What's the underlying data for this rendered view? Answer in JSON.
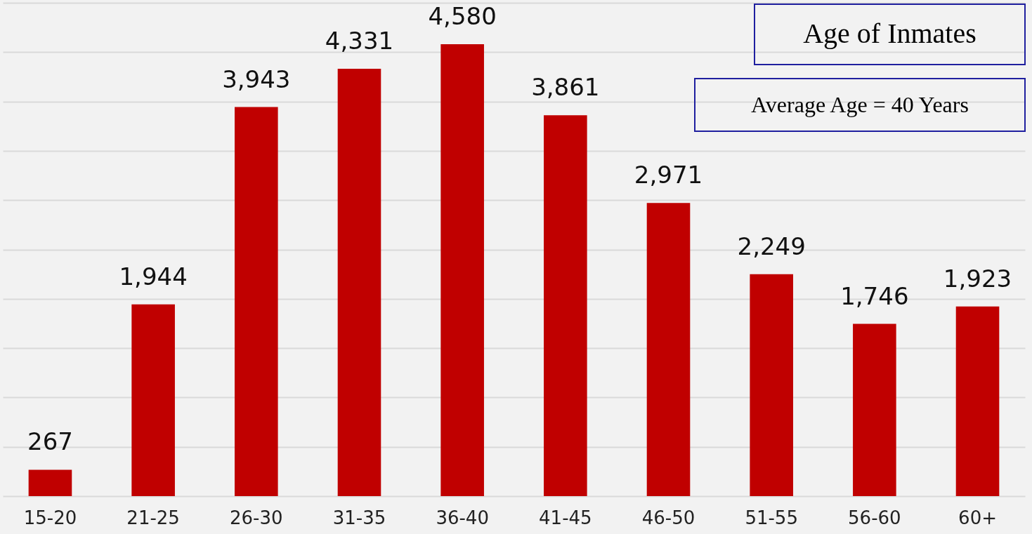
{
  "chart_data": {
    "type": "bar",
    "title": "Age of Inmates",
    "categories": [
      "15-20",
      "21-25",
      "26-30",
      "31-35",
      "36-40",
      "41-45",
      "46-50",
      "51-55",
      "56-60",
      "60+"
    ],
    "values": [
      267,
      1944,
      3943,
      4331,
      4580,
      3861,
      2971,
      2249,
      1746,
      1923
    ],
    "color": "#c00000",
    "value_labels": [
      "267",
      "1,944",
      "3,943",
      "4,331",
      "4,580",
      "3,861",
      "2,971",
      "2,249",
      "1,746",
      "1,923"
    ],
    "grid": "y",
    "tick_labels": "x",
    "ylim": [
      0,
      5000
    ],
    "yticks": [
      {
        "value": 0,
        "label": null
      },
      {
        "value": 500,
        "label": null
      },
      {
        "value": 1000,
        "label": null
      },
      {
        "value": 1500,
        "label": null
      },
      {
        "value": 2000,
        "label": null
      },
      {
        "value": 2500,
        "label": null
      },
      {
        "value": 3000,
        "label": null
      },
      {
        "value": 3500,
        "label": null
      },
      {
        "value": 4000,
        "label": null
      },
      {
        "value": 4500,
        "label": null
      },
      {
        "value": 5000,
        "label": null
      }
    ],
    "annotations": [
      "Average Age = 40 Years"
    ]
  }
}
